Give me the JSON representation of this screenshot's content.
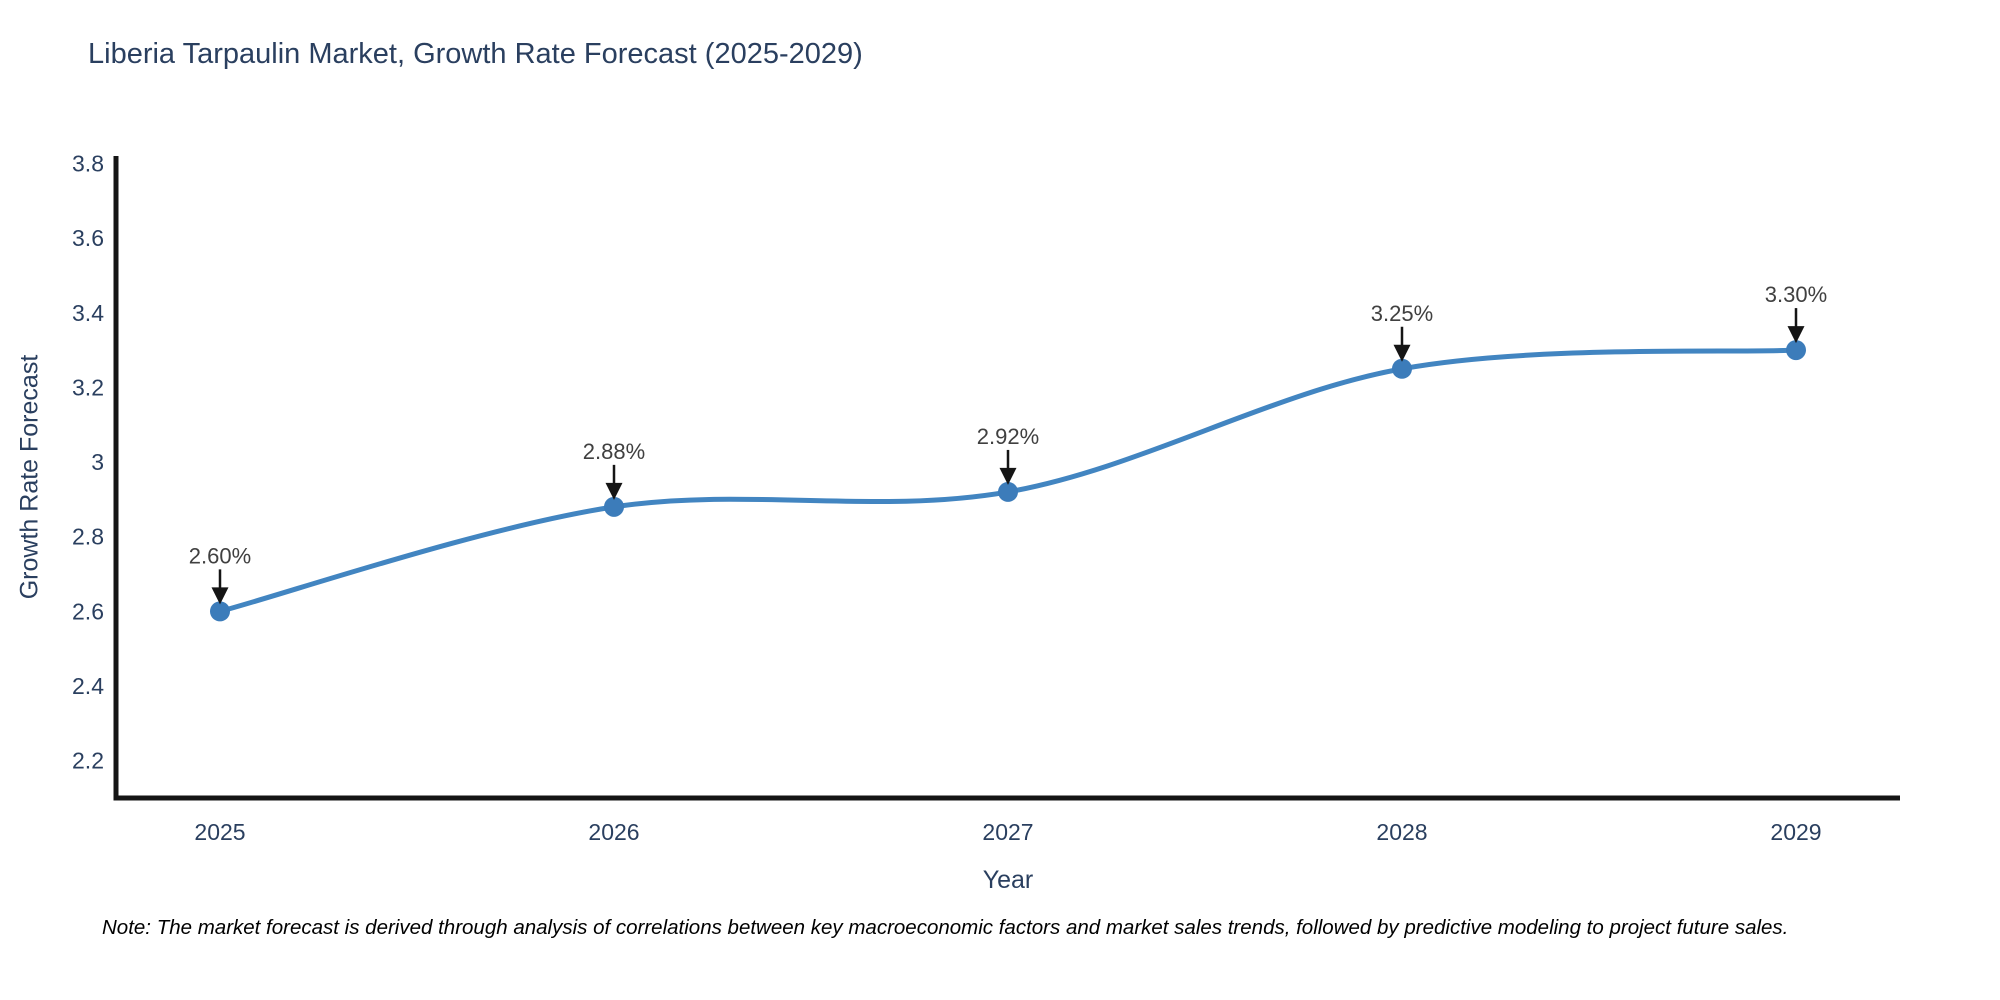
{
  "title": "Liberia Tarpaulin Market, Growth Rate Forecast (2025-2029)",
  "note": "Note: The market forecast is derived through analysis of correlations between key macroeconomic factors and market sales trends, followed by predictive modeling to project future sales.",
  "chart_data": {
    "type": "line",
    "title": "Liberia Tarpaulin Market, Growth Rate Forecast (2025-2029)",
    "x": [
      "2025",
      "2026",
      "2027",
      "2028",
      "2029"
    ],
    "values": [
      2.6,
      2.88,
      2.92,
      3.25,
      3.3
    ],
    "point_labels": [
      "2.60%",
      "2.88%",
      "2.92%",
      "3.25%",
      "3.30%"
    ],
    "xlabel": "Year",
    "ylabel": "Growth Rate Forecast",
    "ylim": [
      2.1,
      3.82
    ],
    "yticks": [
      2.2,
      2.4,
      2.6,
      2.8,
      3.0,
      3.2,
      3.4,
      3.6,
      3.8
    ],
    "ytick_labels": [
      "2.2",
      "2.4",
      "2.6",
      "2.8",
      "3",
      "3.2",
      "3.4",
      "3.6",
      "3.8"
    ],
    "line_shape": "spline",
    "grid": false,
    "legend": false,
    "annotations": "black down-arrows from value labels to markers"
  },
  "colors": {
    "background": "#ffffff",
    "text": "#2a3f5f",
    "annotation": "#404040",
    "axis": "#151515",
    "line": "#4285c1",
    "marker": "#3c7cba",
    "note": "#000000"
  }
}
